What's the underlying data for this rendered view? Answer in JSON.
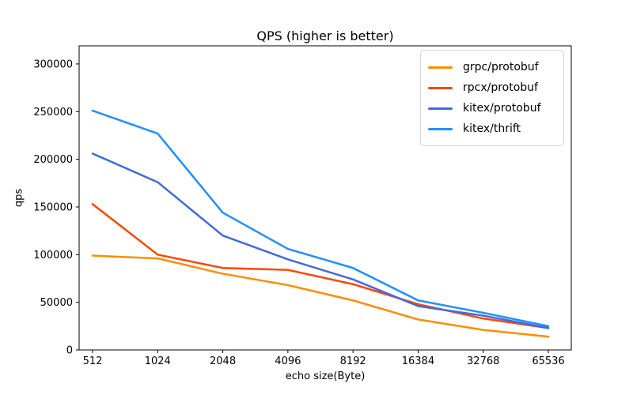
{
  "chart_data": {
    "type": "line",
    "title": "QPS (higher is better)",
    "xlabel": "echo size(Byte)",
    "ylabel": "qps",
    "categories": [
      "512",
      "1024",
      "2048",
      "4096",
      "8192",
      "16384",
      "32768",
      "65536"
    ],
    "series": [
      {
        "name": "grpc/protobuf",
        "color": "#ff8c00",
        "values": [
          99000,
          96000,
          80000,
          68000,
          52000,
          32000,
          21000,
          14000
        ]
      },
      {
        "name": "rpcx/protobuf",
        "color": "#ff4500",
        "values": [
          153000,
          100000,
          86000,
          84000,
          69000,
          48000,
          33000,
          23000
        ]
      },
      {
        "name": "kitex/protobuf",
        "color": "#4169e1",
        "values": [
          206000,
          176000,
          120000,
          95000,
          74000,
          46000,
          36000,
          23000
        ]
      },
      {
        "name": "kitex/thrift",
        "color": "#1e90ff",
        "values": [
          251000,
          227000,
          144000,
          106000,
          86000,
          52000,
          39000,
          25000
        ]
      }
    ],
    "y_ticks": [
      0,
      50000,
      100000,
      150000,
      200000,
      250000,
      300000
    ],
    "ylim": [
      0,
      319000
    ],
    "grid": false,
    "legend_position": "upper right",
    "line_width": 2.5,
    "axis_color": "#000000",
    "background_color": "#ffffff"
  }
}
